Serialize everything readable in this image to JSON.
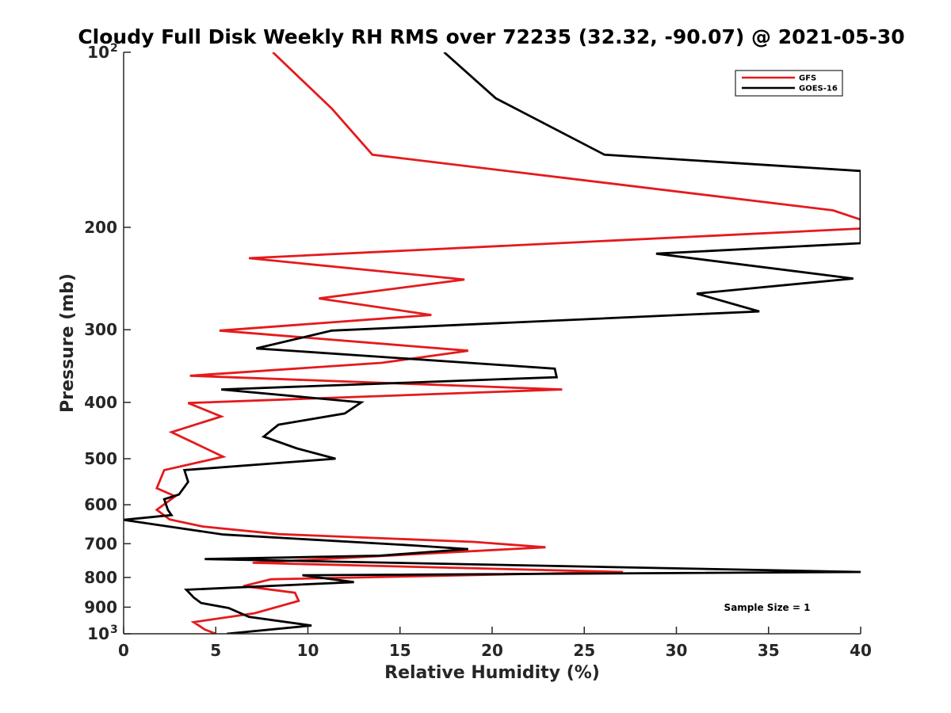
{
  "chart_data": {
    "type": "line",
    "title": "Cloudy Full Disk Weekly RH RMS over 72235 (32.32, -90.07) @ 2021-05-30",
    "xlabel": "Relative Humidity (%)",
    "ylabel": "Pressure (mb)",
    "xlim": [
      0,
      40
    ],
    "ylim": [
      100,
      1000
    ],
    "yscale": "log",
    "y_reversed": true,
    "x_ticks": [
      0,
      5,
      10,
      15,
      20,
      25,
      30,
      35,
      40
    ],
    "x_tick_labels": [
      "0",
      "5",
      "10",
      "15",
      "20",
      "25",
      "30",
      "35",
      "40"
    ],
    "y_ticks": [
      100,
      200,
      300,
      400,
      500,
      600,
      700,
      800,
      900,
      1000
    ],
    "y_tick_labels": [
      {
        "base": "10",
        "sup": "2"
      },
      {
        "base": "200"
      },
      {
        "base": "300"
      },
      {
        "base": "400"
      },
      {
        "base": "500"
      },
      {
        "base": "600"
      },
      {
        "base": "700"
      },
      {
        "base": "800"
      },
      {
        "base": "900"
      },
      {
        "base": "10",
        "sup": "3"
      }
    ],
    "legend_position": "top-right",
    "annotation": "Sample Size = 1",
    "series": [
      {
        "name": "GFS",
        "color": "#e41a1c",
        "points": [
          [
            8.1,
            100
          ],
          [
            11.3,
            125
          ],
          [
            13.5,
            150
          ],
          [
            38.5,
            187
          ],
          [
            40,
            194
          ],
          [
            40,
            201
          ],
          [
            6.8,
            226
          ],
          [
            18.5,
            246
          ],
          [
            10.6,
            265
          ],
          [
            16.7,
            283
          ],
          [
            5.2,
            301
          ],
          [
            18.7,
            326
          ],
          [
            14.0,
            342
          ],
          [
            3.6,
            360
          ],
          [
            23.8,
            380
          ],
          [
            3.5,
            401
          ],
          [
            5.3,
            423
          ],
          [
            2.6,
            450
          ],
          [
            5.4,
            496
          ],
          [
            2.2,
            523
          ],
          [
            1.8,
            562
          ],
          [
            2.8,
            580
          ],
          [
            1.8,
            612
          ],
          [
            2.5,
            636
          ],
          [
            4.3,
            654
          ],
          [
            8.4,
            674
          ],
          [
            19.0,
            695
          ],
          [
            22.9,
            710
          ],
          [
            7.0,
            755
          ],
          [
            27.1,
            783
          ],
          [
            8.0,
            806
          ],
          [
            6.5,
            828
          ],
          [
            9.3,
            850
          ],
          [
            9.5,
            878
          ],
          [
            7.1,
            922
          ],
          [
            3.8,
            955
          ],
          [
            4.4,
            983
          ],
          [
            5.0,
            1000
          ]
        ]
      },
      {
        "name": "GOES-16",
        "color": "#000000",
        "points": [
          [
            17.4,
            100
          ],
          [
            20.2,
            120
          ],
          [
            26.1,
            150
          ],
          [
            40,
            160
          ],
          [
            40,
            213
          ],
          [
            28.9,
            222
          ],
          [
            39.6,
            245
          ],
          [
            31.1,
            260
          ],
          [
            34.5,
            279
          ],
          [
            11.3,
            301
          ],
          [
            7.2,
            323
          ],
          [
            23.4,
            350
          ],
          [
            23.5,
            362
          ],
          [
            5.3,
            380
          ],
          [
            12.9,
            400
          ],
          [
            12.0,
            418
          ],
          [
            8.4,
            437
          ],
          [
            7.6,
            458
          ],
          [
            9.4,
            480
          ],
          [
            11.5,
            500
          ],
          [
            3.3,
            523
          ],
          [
            3.5,
            548
          ],
          [
            3.0,
            576
          ],
          [
            2.2,
            587
          ],
          [
            2.4,
            612
          ],
          [
            2.6,
            625
          ],
          [
            0,
            637
          ],
          [
            5.4,
            675
          ],
          [
            15.8,
            705
          ],
          [
            18.7,
            715
          ],
          [
            13.9,
            734
          ],
          [
            4.4,
            744
          ],
          [
            40,
            783
          ],
          [
            9.7,
            793
          ],
          [
            12.5,
            815
          ],
          [
            3.4,
            840
          ],
          [
            3.8,
            866
          ],
          [
            4.2,
            885
          ],
          [
            5.7,
            903
          ],
          [
            6.8,
            935
          ],
          [
            10.2,
            968
          ],
          [
            5.6,
            1000
          ]
        ]
      }
    ]
  }
}
